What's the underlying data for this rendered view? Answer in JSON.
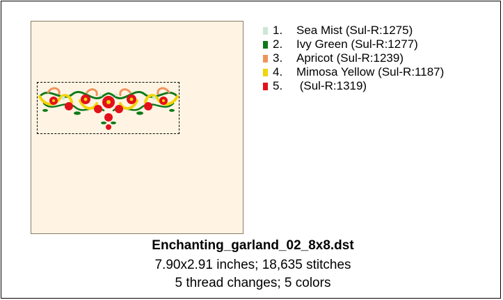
{
  "file": {
    "name": "Enchanting_garland_02_8x8.dst",
    "size_stitches": "7.90x2.91 inches; 18,635 stitches",
    "changes_colors": "5 thread changes; 5 colors"
  },
  "threads": [
    {
      "index": "1.",
      "name": "Sea Mist (Sul-R:1275)",
      "color": "#cfe6d6"
    },
    {
      "index": "2.",
      "name": "Ivy Green (Sul-R:1277)",
      "color": "#0f7a1a"
    },
    {
      "index": "3.",
      "name": "Apricot (Sul-R:1239)",
      "color": "#f0935a"
    },
    {
      "index": "4.",
      "name": "Mimosa Yellow (Sul-R:1187)",
      "color": "#f2d40a"
    },
    {
      "index": "5.",
      "name": " (Sul-R:1319)",
      "color": "#e3101a"
    }
  ],
  "colors": {
    "hoop_background": "#fff4e3",
    "hoop_border": "#8a7a66"
  }
}
